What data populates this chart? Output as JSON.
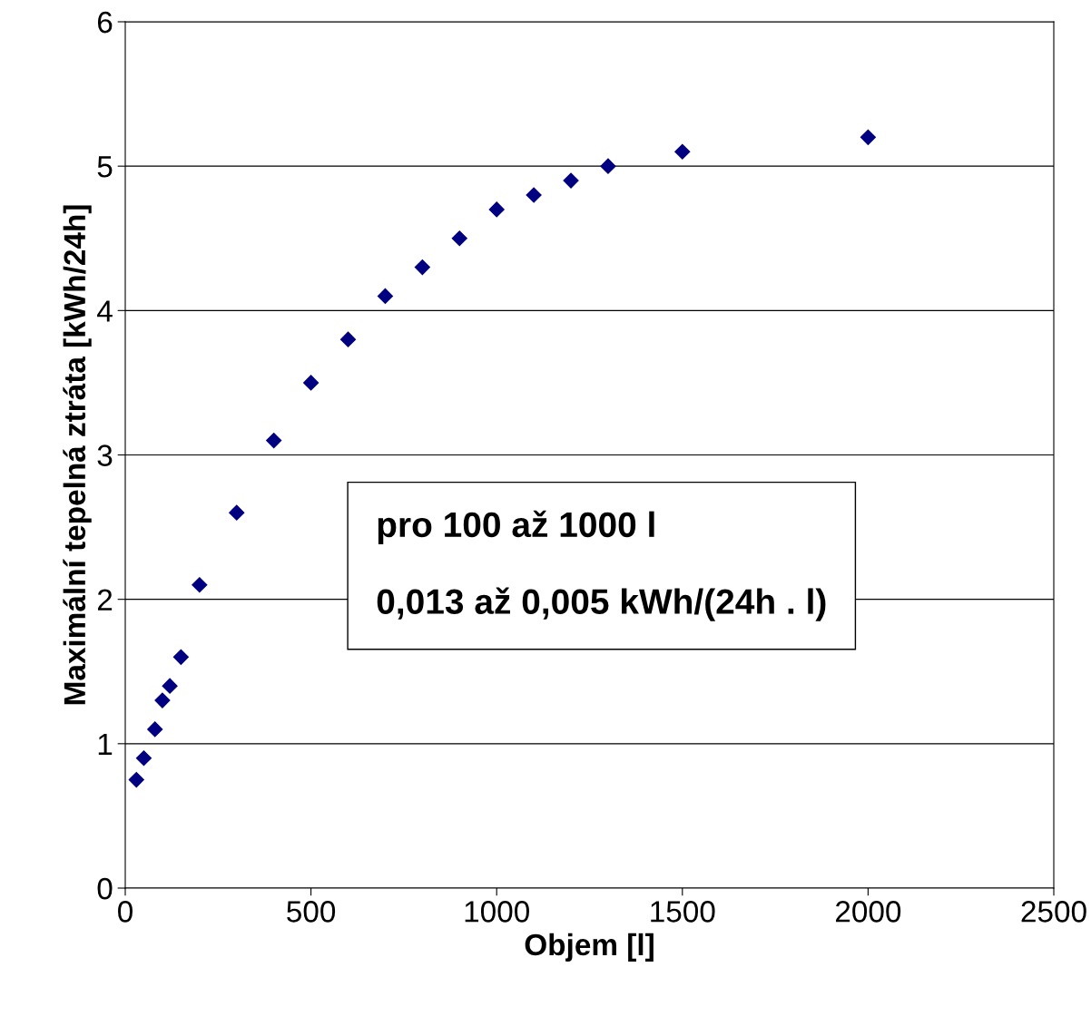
{
  "chart_data": {
    "type": "scatter",
    "xlabel": "Objem [l]",
    "ylabel": "Maximální tepelná ztráta [kWh/24h]",
    "annotations": [
      "pro 100 až 1000 l\n\n0,013 až 0,005 kWh/(24h . l)"
    ],
    "x": [
      30,
      50,
      80,
      100,
      120,
      150,
      200,
      300,
      400,
      500,
      600,
      700,
      800,
      900,
      1000,
      1100,
      1200,
      1300,
      1500,
      2000
    ],
    "series": [
      {
        "color": "#000080",
        "values": [
          0.75,
          0.9,
          1.1,
          1.3,
          1.4,
          1.6,
          2.1,
          2.6,
          3.1,
          3.5,
          3.8,
          4.1,
          4.3,
          4.5,
          4.7,
          4.8,
          4.9,
          5.0,
          5.1,
          5.2
        ]
      }
    ],
    "xlim": [
      0,
      2500
    ],
    "xticks": [
      0,
      500,
      1000,
      1500,
      2000,
      2500
    ],
    "ylim": [
      0,
      6
    ],
    "yticks": [
      0,
      1,
      2,
      3,
      4,
      5,
      6
    ],
    "grid": "y",
    "marker": "diamond",
    "legend": false
  }
}
